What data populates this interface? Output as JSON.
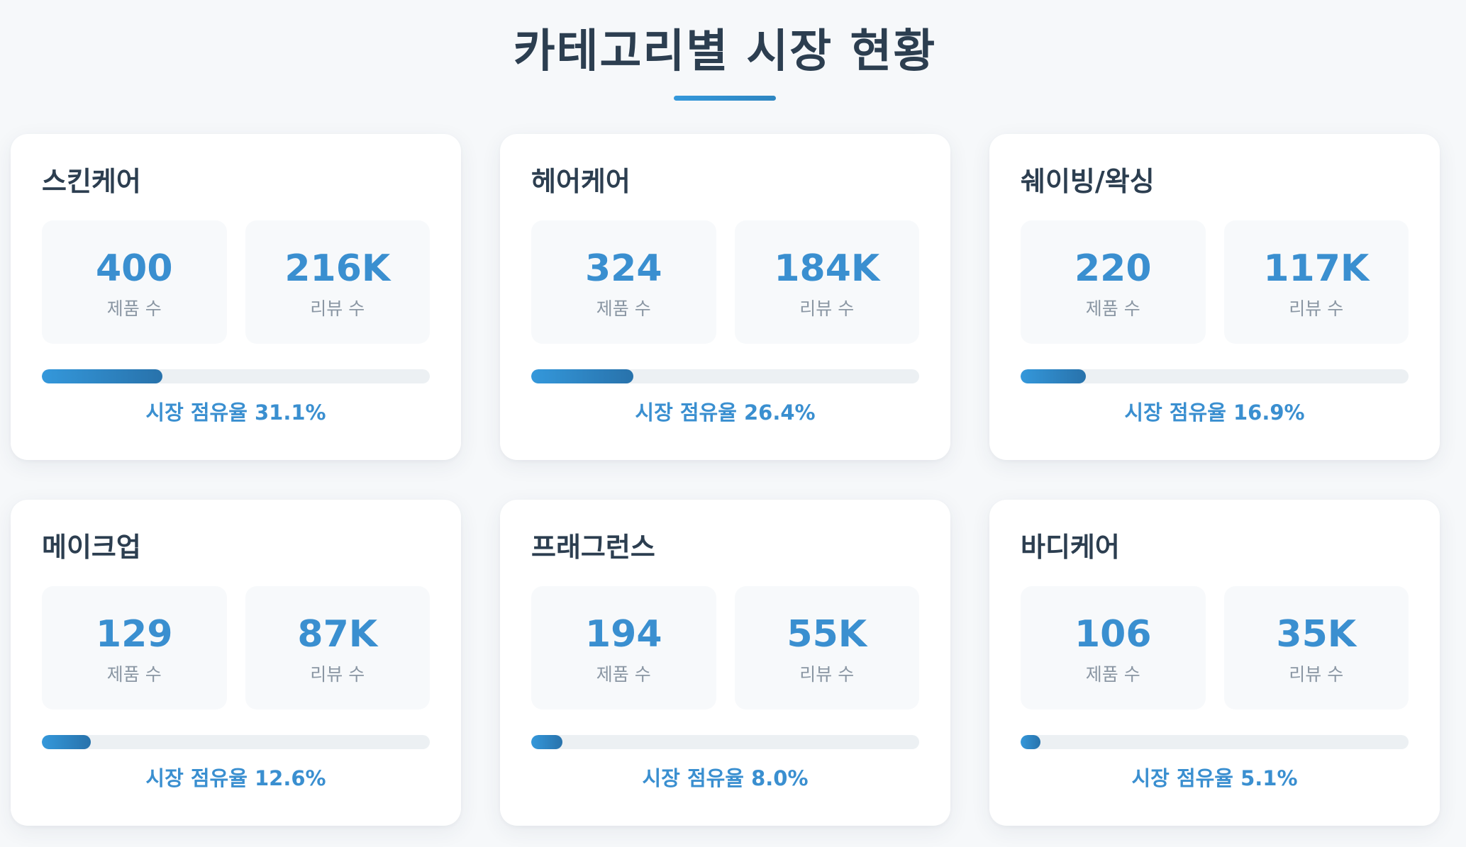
{
  "page": {
    "title": "카테고리별 시장 현황"
  },
  "labels": {
    "products": "제품 수",
    "reviews": "리뷰 수"
  },
  "colors": {
    "accent": "#3a8fd0",
    "title": "#2c3e50",
    "progress_track": "#ecf0f3",
    "background": "#f6f8fa"
  },
  "categories": [
    {
      "name": "스킨케어",
      "products": "400",
      "reviews": "216K",
      "share_text": "시장 점유율 31.1%",
      "share_percent": 31.1
    },
    {
      "name": "헤어케어",
      "products": "324",
      "reviews": "184K",
      "share_text": "시장 점유율 26.4%",
      "share_percent": 26.4
    },
    {
      "name": "쉐이빙/왁싱",
      "products": "220",
      "reviews": "117K",
      "share_text": "시장 점유율 16.9%",
      "share_percent": 16.9
    },
    {
      "name": "메이크업",
      "products": "129",
      "reviews": "87K",
      "share_text": "시장 점유율 12.6%",
      "share_percent": 12.6
    },
    {
      "name": "프래그런스",
      "products": "194",
      "reviews": "55K",
      "share_text": "시장 점유율 8.0%",
      "share_percent": 8.0
    },
    {
      "name": "바디케어",
      "products": "106",
      "reviews": "35K",
      "share_text": "시장 점유율 5.1%",
      "share_percent": 5.1
    }
  ]
}
